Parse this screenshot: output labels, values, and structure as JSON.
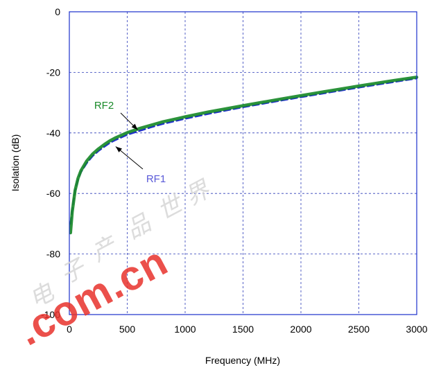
{
  "chart_data": {
    "type": "line",
    "title": "",
    "xlabel": "Frequency (MHz)",
    "ylabel": "Isolation (dB)",
    "xlim": [
      0,
      3000
    ],
    "ylim": [
      -100,
      0
    ],
    "x_ticks": [
      0,
      500,
      1000,
      1500,
      2000,
      2500,
      3000
    ],
    "y_ticks": [
      0,
      -20,
      -40,
      -60,
      -80,
      -100
    ],
    "grid": true,
    "series": [
      {
        "name": "RF1",
        "color": "#1f2ecc",
        "style": "dashed",
        "points": [
          [
            10,
            -70
          ],
          [
            25,
            -65
          ],
          [
            50,
            -59
          ],
          [
            75,
            -55.5
          ],
          [
            100,
            -53
          ],
          [
            150,
            -50
          ],
          [
            200,
            -47.7
          ],
          [
            250,
            -46
          ],
          [
            300,
            -44.6
          ],
          [
            350,
            -43.3
          ],
          [
            400,
            -42.3
          ],
          [
            500,
            -40.6
          ],
          [
            600,
            -39.4
          ],
          [
            700,
            -38.2
          ],
          [
            800,
            -37.1
          ],
          [
            1000,
            -35.3
          ],
          [
            1200,
            -33.7
          ],
          [
            1500,
            -31.5
          ],
          [
            1800,
            -29.5
          ],
          [
            2000,
            -28.2
          ],
          [
            2200,
            -26.9
          ],
          [
            2500,
            -25
          ],
          [
            2800,
            -23.2
          ],
          [
            3000,
            -22
          ]
        ]
      },
      {
        "name": "RF2",
        "color": "#1a8a2a",
        "style": "solid",
        "points": [
          [
            10,
            -73
          ],
          [
            25,
            -66
          ],
          [
            50,
            -59
          ],
          [
            75,
            -55
          ],
          [
            100,
            -52.5
          ],
          [
            150,
            -49.3
          ],
          [
            200,
            -47
          ],
          [
            250,
            -45.3
          ],
          [
            300,
            -43.9
          ],
          [
            350,
            -42.6
          ],
          [
            400,
            -41.6
          ],
          [
            500,
            -39.9
          ],
          [
            600,
            -38.6
          ],
          [
            700,
            -37.5
          ],
          [
            800,
            -36.4
          ],
          [
            1000,
            -34.7
          ],
          [
            1200,
            -33.1
          ],
          [
            1500,
            -31
          ],
          [
            1800,
            -29
          ],
          [
            2000,
            -27.7
          ],
          [
            2200,
            -26.4
          ],
          [
            2500,
            -24.5
          ],
          [
            2800,
            -22.7
          ],
          [
            3000,
            -21.6
          ]
        ]
      }
    ],
    "annotations": [
      {
        "text": "RF2",
        "color": "#1a8a2a",
        "arrow_to": [
          590,
          -39
        ]
      },
      {
        "text": "RF1",
        "color": "#5a5ad8",
        "arrow_to": [
          400,
          -44.5
        ]
      }
    ]
  },
  "watermark": {
    "text": ".com.cn",
    "script": "电子产品世界"
  }
}
